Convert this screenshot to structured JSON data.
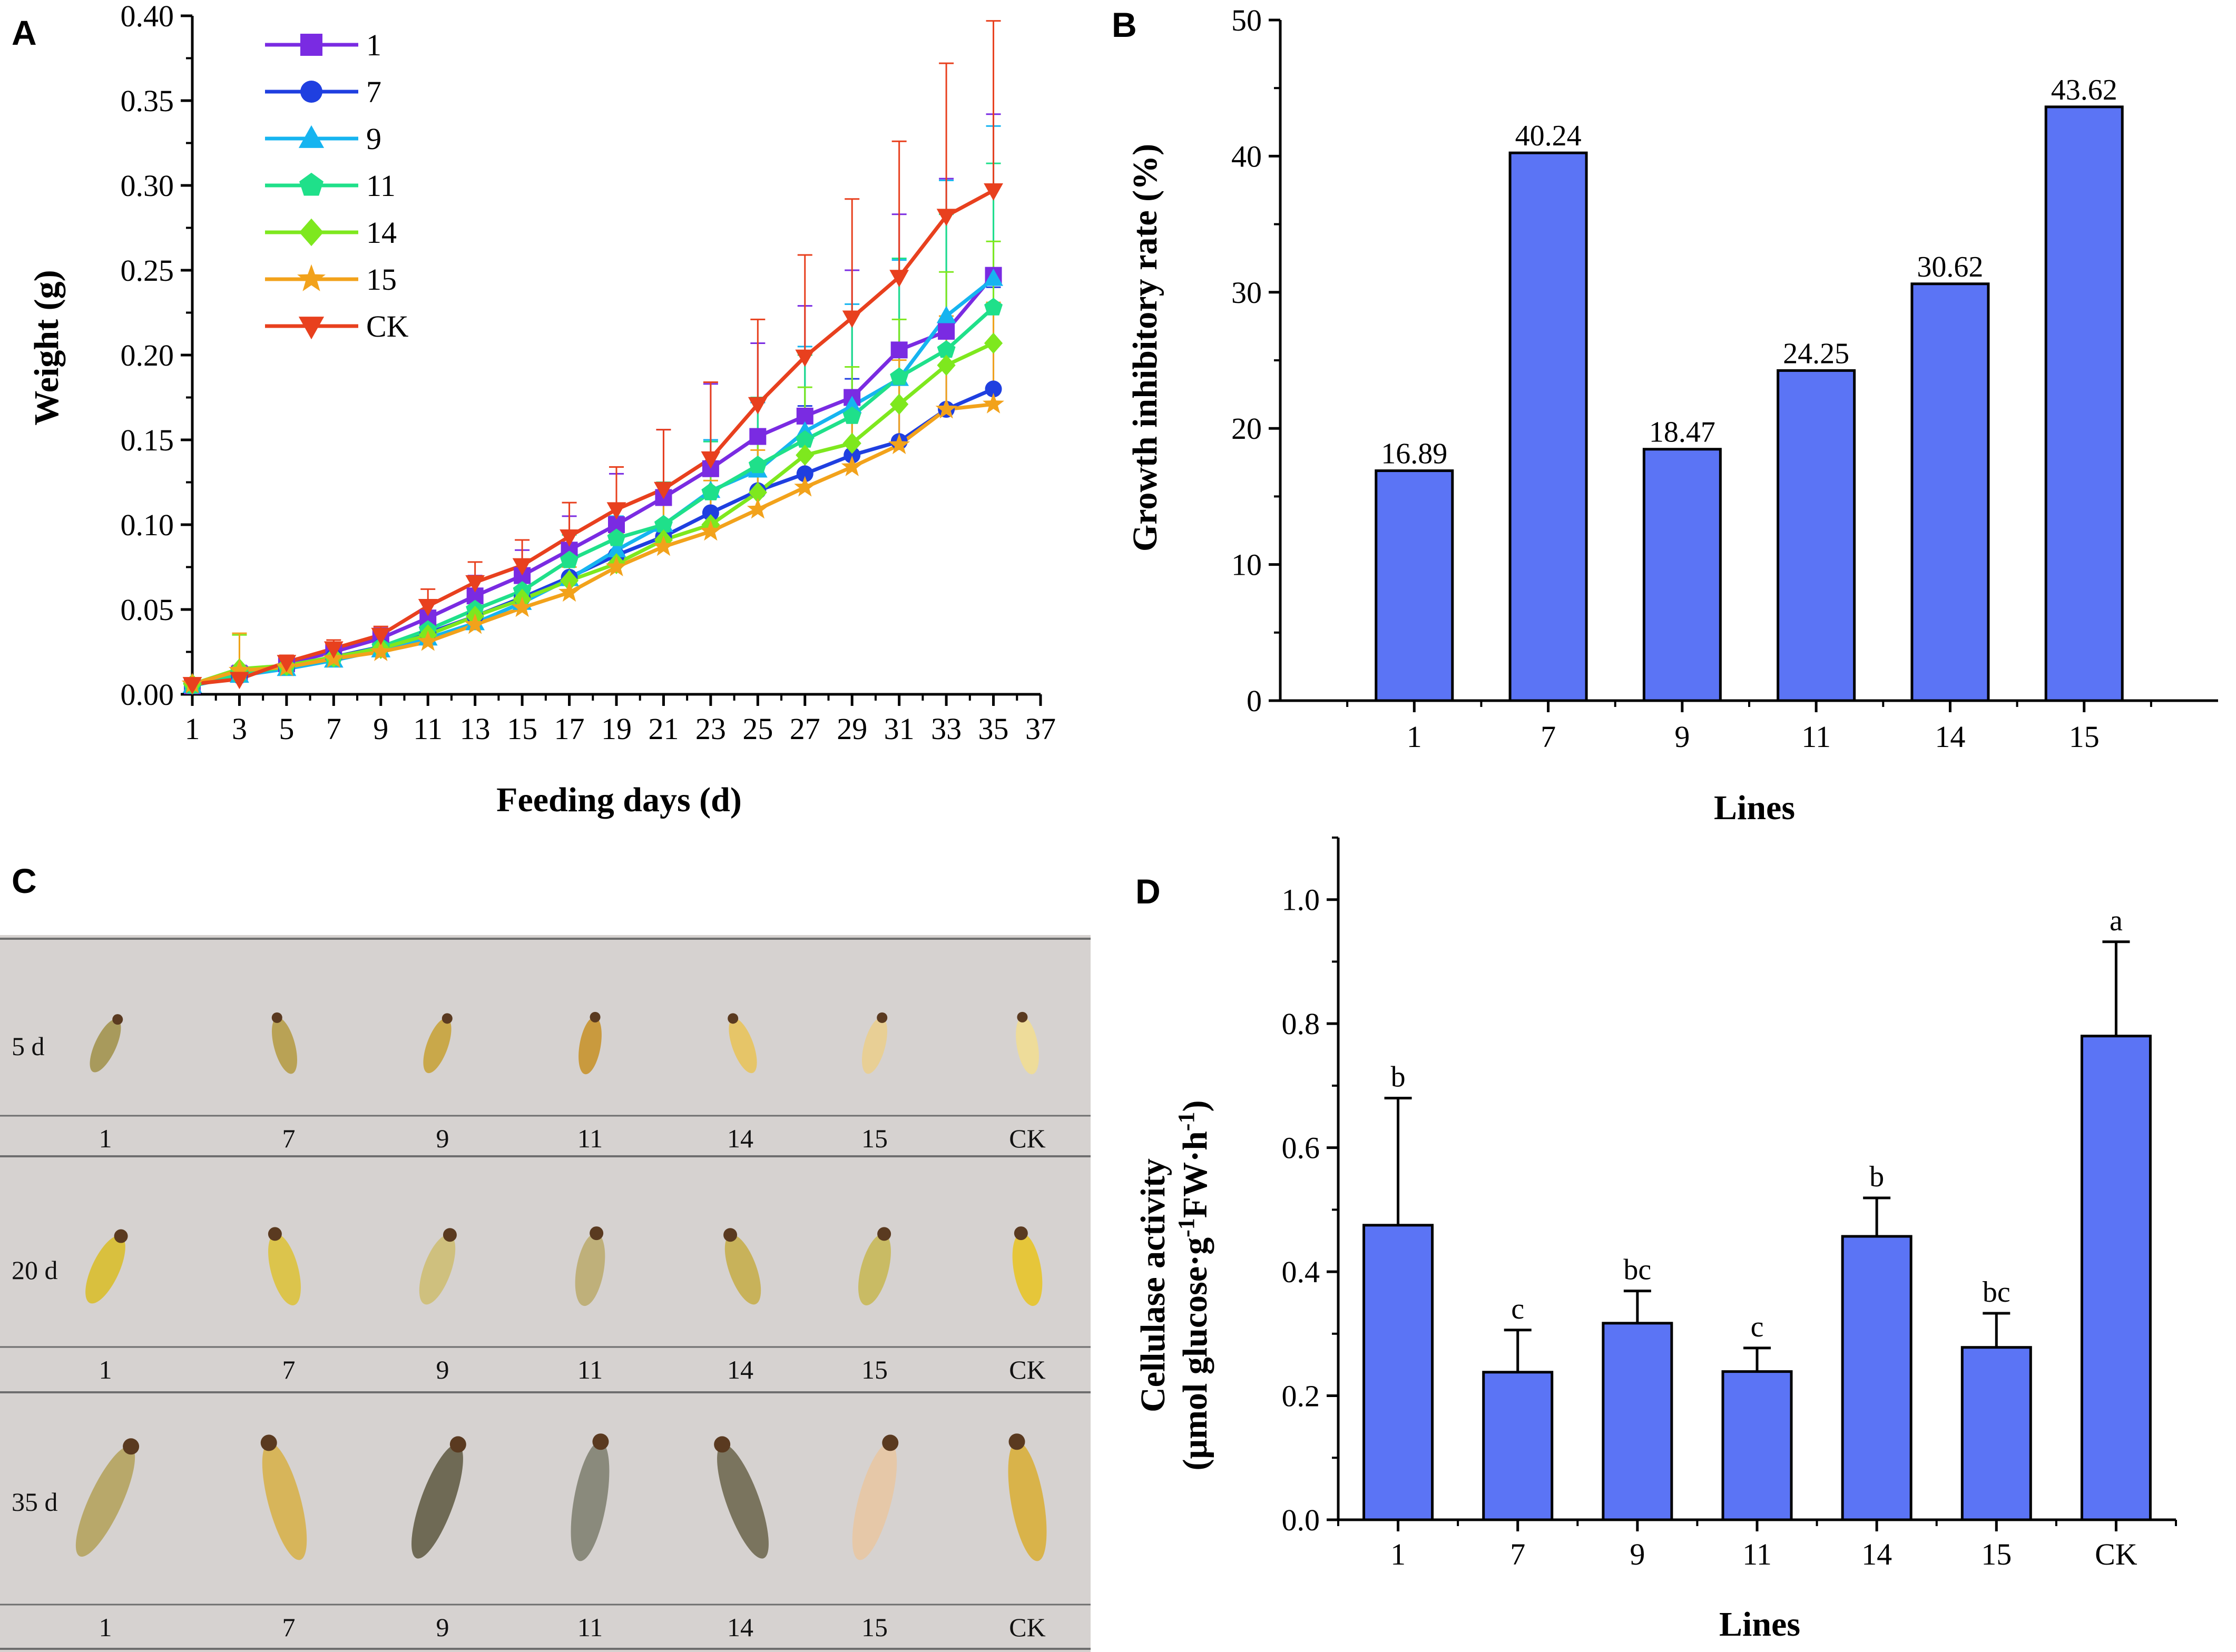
{
  "panels": {
    "A": "A",
    "B": "B",
    "C": "C",
    "D": "D"
  },
  "colors": {
    "bar": "#5b74f5",
    "axis": "#000000",
    "photo_bg": "#d9d5d3",
    "photo_line": "#6e6e6e"
  },
  "chart_data": [
    {
      "id": "A",
      "type": "line",
      "title": "",
      "xlabel": "Feeding days (d)",
      "ylabel": "Weight (g)",
      "xlim": [
        1,
        37
      ],
      "ylim": [
        0,
        0.4
      ],
      "xticks": [
        "1",
        "3",
        "5",
        "7",
        "9",
        "11",
        "13",
        "15",
        "17",
        "19",
        "21",
        "23",
        "25",
        "27",
        "29",
        "31",
        "33",
        "35",
        "37"
      ],
      "yticks": [
        "0.00",
        "0.05",
        "0.10",
        "0.15",
        "0.20",
        "0.25",
        "0.30",
        "0.35",
        "0.40"
      ],
      "x": [
        1,
        3,
        5,
        7,
        9,
        11,
        13,
        15,
        17,
        19,
        21,
        23,
        25,
        27,
        29,
        31,
        33,
        35
      ],
      "series": [
        {
          "name": "1",
          "color": "#7a2be2",
          "marker": "square",
          "values": [
            0.005,
            0.012,
            0.018,
            0.025,
            0.033,
            0.045,
            0.058,
            0.07,
            0.085,
            0.1,
            0.116,
            0.133,
            0.152,
            0.164,
            0.175,
            0.203,
            0.214,
            0.247
          ],
          "errors": [
            0.002,
            0.005,
            0.004,
            0.005,
            0.006,
            0.01,
            0.012,
            0.015,
            0.02,
            0.03,
            0.04,
            0.05,
            0.055,
            0.065,
            0.075,
            0.08,
            0.09,
            0.095
          ]
        },
        {
          "name": "7",
          "color": "#1f3fe0",
          "marker": "circle",
          "values": [
            0.005,
            0.011,
            0.016,
            0.022,
            0.028,
            0.036,
            0.046,
            0.057,
            0.069,
            0.082,
            0.093,
            0.107,
            0.12,
            0.13,
            0.141,
            0.149,
            0.168,
            0.18
          ],
          "errors": [
            0.002,
            0.004,
            0.004,
            0.005,
            0.005,
            0.008,
            0.01,
            0.012,
            0.015,
            0.02,
            0.025,
            0.03,
            0.035,
            0.04,
            0.045,
            0.05,
            0.055,
            0.06
          ]
        },
        {
          "name": "9",
          "color": "#16b4f0",
          "marker": "triangle-up",
          "values": [
            0.005,
            0.011,
            0.015,
            0.02,
            0.026,
            0.033,
            0.042,
            0.054,
            0.068,
            0.085,
            0.1,
            0.12,
            0.132,
            0.155,
            0.17,
            0.186,
            0.223,
            0.245
          ],
          "errors": [
            0.002,
            0.004,
            0.004,
            0.005,
            0.005,
            0.008,
            0.01,
            0.012,
            0.015,
            0.02,
            0.025,
            0.03,
            0.04,
            0.05,
            0.06,
            0.07,
            0.08,
            0.09
          ]
        },
        {
          "name": "11",
          "color": "#1fe08a",
          "marker": "pentagon",
          "values": [
            0.005,
            0.012,
            0.016,
            0.021,
            0.028,
            0.038,
            0.05,
            0.061,
            0.079,
            0.092,
            0.1,
            0.119,
            0.135,
            0.15,
            0.164,
            0.187,
            0.203,
            0.228
          ],
          "errors": [
            0.002,
            0.004,
            0.004,
            0.005,
            0.005,
            0.008,
            0.01,
            0.012,
            0.015,
            0.02,
            0.025,
            0.03,
            0.04,
            0.05,
            0.06,
            0.07,
            0.08,
            0.085
          ]
        },
        {
          "name": "14",
          "color": "#7ee81e",
          "marker": "diamond",
          "values": [
            0.006,
            0.015,
            0.017,
            0.022,
            0.027,
            0.035,
            0.046,
            0.056,
            0.067,
            0.077,
            0.091,
            0.1,
            0.119,
            0.141,
            0.148,
            0.171,
            0.194,
            0.207
          ],
          "errors": [
            0.002,
            0.02,
            0.004,
            0.005,
            0.005,
            0.008,
            0.01,
            0.012,
            0.015,
            0.02,
            0.025,
            0.03,
            0.035,
            0.04,
            0.045,
            0.05,
            0.055,
            0.06
          ]
        },
        {
          "name": "15",
          "color": "#f2a21b",
          "marker": "star",
          "values": [
            0.006,
            0.014,
            0.016,
            0.021,
            0.025,
            0.031,
            0.041,
            0.051,
            0.06,
            0.075,
            0.087,
            0.096,
            0.109,
            0.122,
            0.134,
            0.147,
            0.168,
            0.171
          ],
          "errors": [
            0.002,
            0.022,
            0.004,
            0.005,
            0.005,
            0.008,
            0.01,
            0.012,
            0.015,
            0.02,
            0.025,
            0.03,
            0.035,
            0.04,
            0.045,
            0.05,
            0.055,
            0.06
          ]
        },
        {
          "name": "CK",
          "color": "#e8401e",
          "marker": "triangle-down",
          "values": [
            0.006,
            0.009,
            0.019,
            0.027,
            0.035,
            0.052,
            0.066,
            0.076,
            0.093,
            0.109,
            0.121,
            0.139,
            0.171,
            0.199,
            0.222,
            0.246,
            0.282,
            0.297
          ],
          "errors": [
            0.002,
            0.004,
            0.004,
            0.005,
            0.005,
            0.01,
            0.012,
            0.015,
            0.02,
            0.025,
            0.035,
            0.045,
            0.05,
            0.06,
            0.07,
            0.08,
            0.09,
            0.1
          ]
        }
      ],
      "legend": "top-left"
    },
    {
      "id": "B",
      "type": "bar",
      "title": "",
      "xlabel": "Lines",
      "ylabel": "Growth inhibitory rate (%)",
      "ylim": [
        0,
        50
      ],
      "yticks": [
        "0",
        "10",
        "20",
        "30",
        "40",
        "50"
      ],
      "categories": [
        "1",
        "7",
        "9",
        "11",
        "14",
        "15"
      ],
      "values": [
        16.89,
        40.24,
        18.47,
        24.25,
        30.62,
        43.62
      ],
      "value_labels": [
        "16.89",
        "40.24",
        "18.47",
        "24.25",
        "30.62",
        "43.62"
      ]
    },
    {
      "id": "D",
      "type": "bar",
      "title": "",
      "xlabel": "Lines",
      "ylabel_line1": "Cellulase activity",
      "ylabel_line2_parts": [
        "(μmol glucose·g",
        "-1",
        "FW·h",
        "-1",
        ")"
      ],
      "ylim": [
        0,
        1.1
      ],
      "yticks": [
        "0.0",
        "0.2",
        "0.4",
        "0.6",
        "0.8",
        "1.0"
      ],
      "categories": [
        "1",
        "7",
        "9",
        "11",
        "14",
        "15",
        "CK"
      ],
      "values": [
        0.475,
        0.238,
        0.317,
        0.239,
        0.457,
        0.278,
        0.78
      ],
      "errors": [
        0.205,
        0.068,
        0.052,
        0.038,
        0.062,
        0.055,
        0.152
      ],
      "significance": [
        "b",
        "c",
        "bc",
        "c",
        "b",
        "bc",
        "a"
      ]
    }
  ],
  "photo": {
    "rows": [
      {
        "day_label": "5 d",
        "lines": [
          "1",
          "7",
          "9",
          "11",
          "14",
          "15",
          "CK"
        ]
      },
      {
        "day_label": "20 d",
        "lines": [
          "1",
          "7",
          "9",
          "11",
          "14",
          "15",
          "CK"
        ]
      },
      {
        "day_label": "35 d",
        "lines": [
          "1",
          "7",
          "9",
          "11",
          "14",
          "15",
          "CK"
        ]
      }
    ]
  }
}
